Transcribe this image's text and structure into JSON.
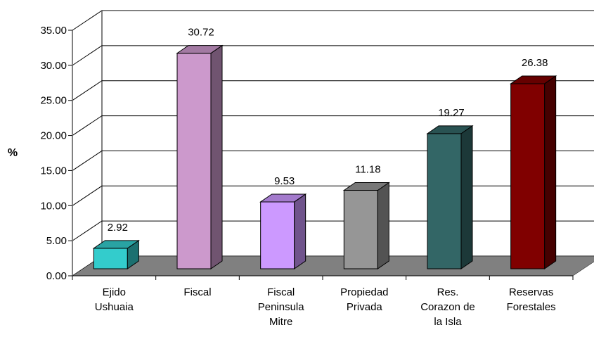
{
  "chart_data": {
    "type": "bar",
    "style": "3d-column",
    "categories": [
      [
        "Ejido",
        "Ushuaia"
      ],
      [
        "Fiscal"
      ],
      [
        "Fiscal",
        "Peninsula",
        "Mitre"
      ],
      [
        "Propiedad",
        "Privada"
      ],
      [
        "Res.",
        "Corazon de",
        "la Isla"
      ],
      [
        "Reservas",
        "Forestales"
      ]
    ],
    "values": [
      2.92,
      30.72,
      9.53,
      11.18,
      19.27,
      26.38
    ],
    "value_labels": [
      "2.92",
      "30.72",
      "9.53",
      "11.18",
      "19.27",
      "26.38"
    ],
    "colors": [
      "#33CCCC",
      "#CC99CC",
      "#CC99FF",
      "#969696",
      "#336666",
      "#800000"
    ],
    "ylabel": "%",
    "xlabel": "",
    "title": "",
    "ylim": [
      0,
      35
    ],
    "yticks": [
      "0.00",
      "5.00",
      "10.00",
      "15.00",
      "20.00",
      "25.00",
      "30.00",
      "35.00"
    ],
    "grid": true,
    "legend": "none",
    "floor_color": "#808080"
  }
}
